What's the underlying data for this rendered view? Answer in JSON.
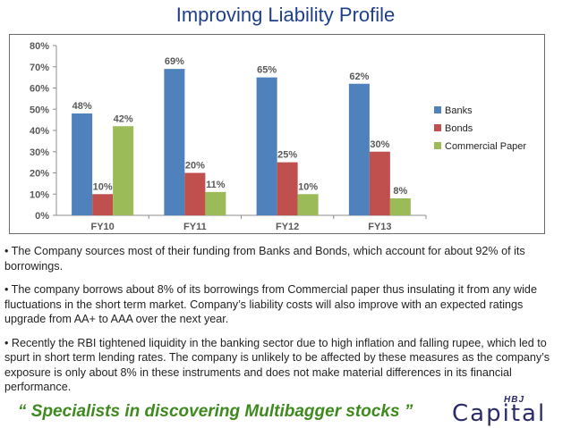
{
  "title": "Improving Liability Profile",
  "chart_data": {
    "type": "bar",
    "categories": [
      "FY10",
      "FY11",
      "FY12",
      "FY13"
    ],
    "series": [
      {
        "name": "Banks",
        "color": "#4f81bd",
        "values": [
          48,
          69,
          65,
          62
        ]
      },
      {
        "name": "Bonds",
        "color": "#c0504d",
        "values": [
          10,
          20,
          25,
          30
        ]
      },
      {
        "name": "Commercial Paper",
        "color": "#9bbb59",
        "values": [
          42,
          11,
          10,
          8
        ]
      }
    ],
    "ylim": [
      0,
      80
    ],
    "yticks": [
      "0%",
      "10%",
      "20%",
      "30%",
      "40%",
      "50%",
      "60%",
      "70%",
      "80%"
    ],
    "ytick_values": [
      0,
      10,
      20,
      30,
      40,
      50,
      60,
      70,
      80
    ],
    "value_suffix": "%",
    "legend": "right",
    "grid": false
  },
  "bullets": [
    "• The  Company sources most of their funding from Banks and Bonds, which account for about 92% of its borrowings.",
    "• The company borrows about 8% of its borrowings from Commercial paper thus insulating it from any wide fluctuations in the short term market. Company’s liability costs will also improve with an expected ratings upgrade from AA+ to AAA over the next year.",
    "• Recently the RBI tightened liquidity in the banking sector due to high inflation and falling rupee, which led to spurt in short term lending rates. The company is unlikely to be affected by these measures as the company’s exposure is only about 8% in these instruments and does not make material differences in its financial performance."
  ],
  "tagline": "“ Specialists in discovering Multibagger stocks ”",
  "logo": {
    "top_text": "HBJ",
    "main_text": "Capital"
  }
}
